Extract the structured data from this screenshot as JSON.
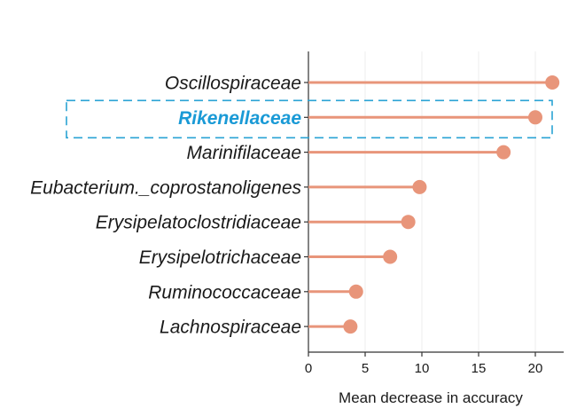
{
  "chart_data": {
    "type": "lollipop",
    "orientation": "horizontal",
    "title": "",
    "xlabel": "Mean decrease in accuracy",
    "ylabel": "",
    "xlim": [
      0,
      22.5
    ],
    "xticks": [
      0,
      5,
      10,
      15,
      20
    ],
    "grid": "vertical",
    "categories": [
      "Oscillospiraceae",
      "Rikenellaceae",
      "Marinifilaceae",
      "Eubacterium._coprostanoligenes",
      "Erysipelatoclostridiaceae",
      "Erysipelotrichaceae",
      "Ruminococcaceae",
      "Lachnospiraceae"
    ],
    "values": [
      21.5,
      20.0,
      17.2,
      9.8,
      8.8,
      7.2,
      4.2,
      3.7
    ],
    "highlighted_category": "Rikenellaceae",
    "colors": {
      "stem": "#e8957a",
      "dot": "#e8957a",
      "highlight_text": "#1a9ad6",
      "highlight_box": "#2aa3d4",
      "grid": "#ececec",
      "axis": "#333333"
    }
  }
}
